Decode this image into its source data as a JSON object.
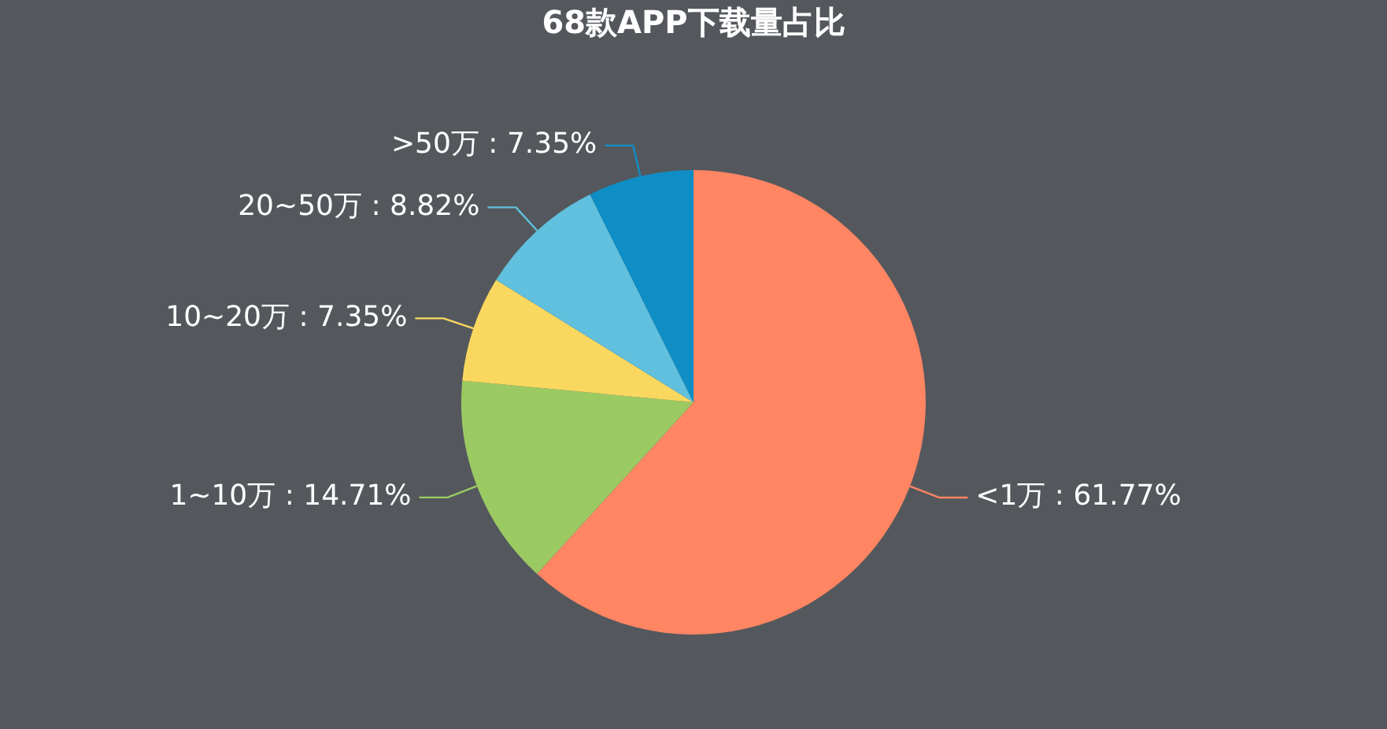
{
  "chart_data": {
    "type": "pie",
    "title": "68款APP下载量占比",
    "categories": [
      "<1万",
      "1~10万",
      "10~20万",
      "20~50万",
      ">50万"
    ],
    "values": [
      61.77,
      14.71,
      7.35,
      8.82,
      7.35
    ],
    "value_labels": [
      ": 61.77%",
      ": 14.71%",
      ": 7.35%",
      ": 8.82%",
      ": 7.35%"
    ],
    "colors": [
      "#ff8563",
      "#9bca63",
      "#fad860",
      "#60c0dd",
      "#0e8ec5"
    ],
    "legend": false
  }
}
